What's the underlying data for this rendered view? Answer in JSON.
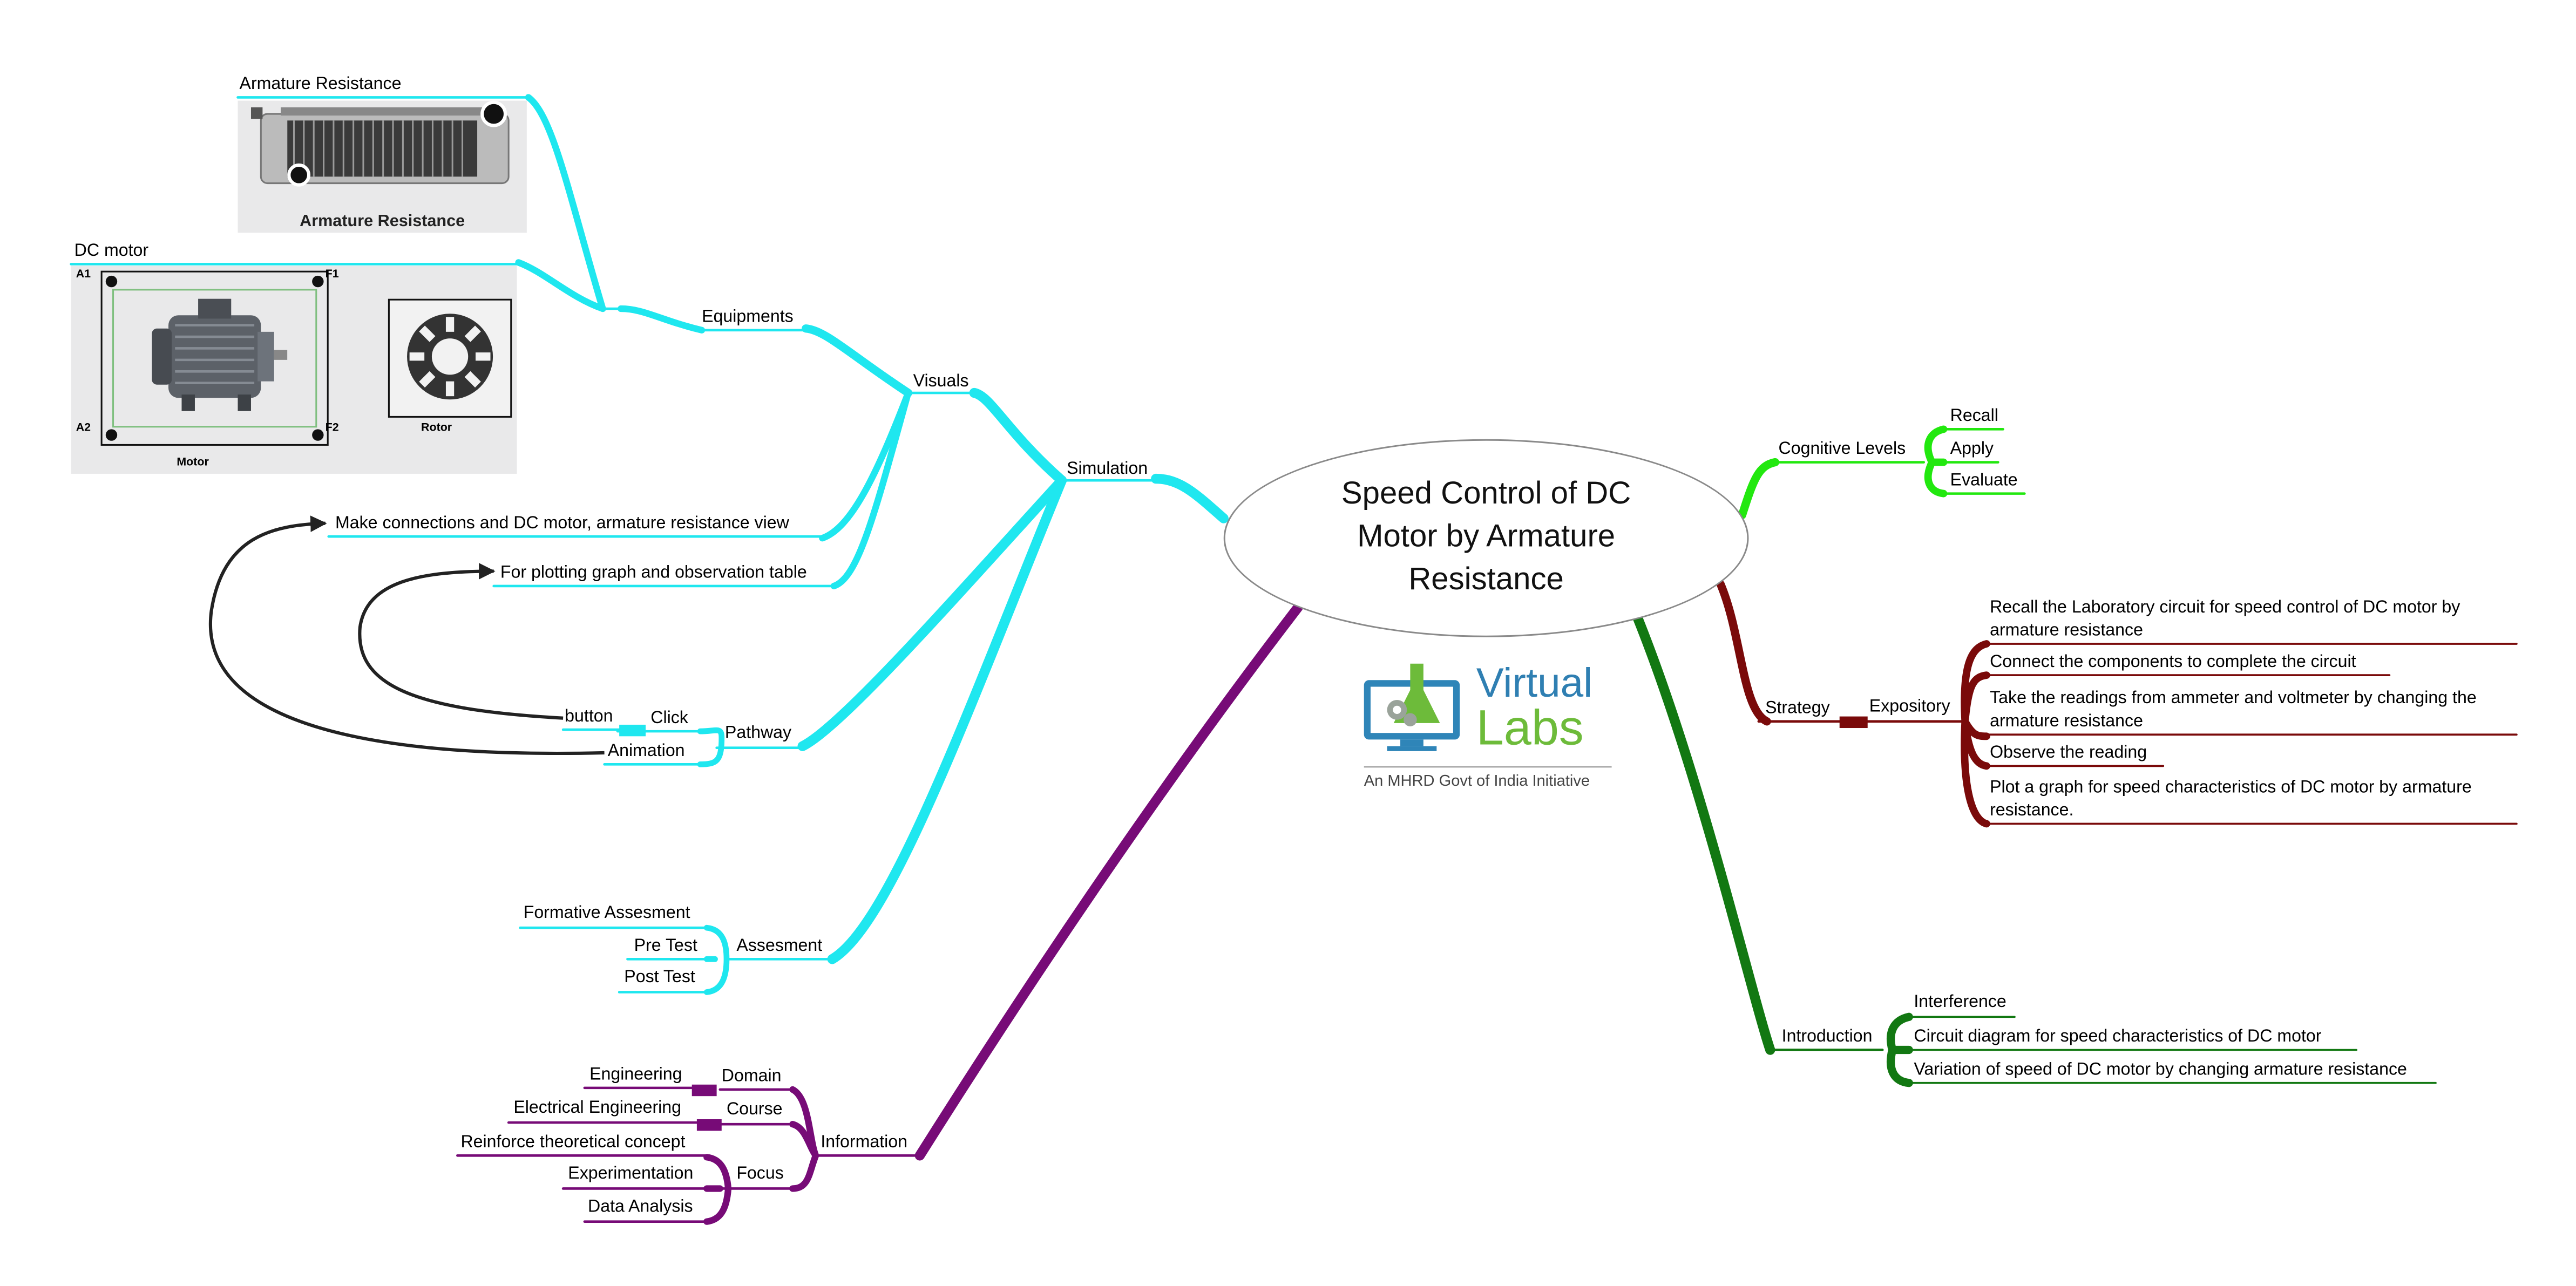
{
  "central_topic": "Speed Control of DC Motor by Armature Resistance",
  "logo": {
    "name": "Virtual",
    "name2": "Labs",
    "tagline": "An MHRD Govt of India Initiative"
  },
  "colors": {
    "cyan": "#1fe7ef",
    "purple": "#770b77",
    "bright_green": "#22e80f",
    "dark_red": "#7a0a0a",
    "dark_green": "#127812",
    "arrow": "#222222"
  },
  "left": {
    "simulation": "Simulation",
    "visuals": "Visuals",
    "equipments": "Equipments",
    "armature_resistance": "Armature Resistance",
    "armature_caption": "Armature Resistance",
    "dc_motor": "DC motor",
    "motor_caption": "Motor",
    "rotor_caption": "Rotor",
    "terminals": [
      "A1",
      "F1",
      "A2",
      "F2"
    ],
    "make_connections": "Make connections and DC motor, armature resistance view",
    "plotting": "For plotting graph and observation table",
    "pathway": "Pathway",
    "click": "Click",
    "button": "button",
    "animation": "Animation",
    "assesment": "Assesment",
    "assesment_items": [
      "Formative Assesment",
      "Pre Test",
      "Post Test"
    ],
    "information": "Information",
    "domain": "Domain",
    "domain_value": "Engineering",
    "course": "Course",
    "course_value": "Electrical Engineering",
    "focus": "Focus",
    "focus_items": [
      "Reinforce theoretical concept",
      "Experimentation",
      "Data Analysis"
    ]
  },
  "right": {
    "cognitive_levels": "Cognitive Levels",
    "cognitive_items": [
      "Recall",
      "Apply",
      "Evaluate"
    ],
    "strategy": "Strategy",
    "expository": "Expository",
    "expository_items": [
      "Recall the Laboratory circuit for speed control of DC motor by armature resistance",
      "Connect the components to complete the circuit",
      "Take the readings from ammeter and voltmeter by changing the armature resistance",
      "Observe the reading",
      "Plot a graph for speed characteristics of DC motor by armature resistance."
    ],
    "introduction": "Introduction",
    "introduction_items": [
      "Interference",
      "Circuit diagram for speed characteristics of DC motor",
      "Variation of speed of DC motor by changing armature resistance"
    ]
  }
}
